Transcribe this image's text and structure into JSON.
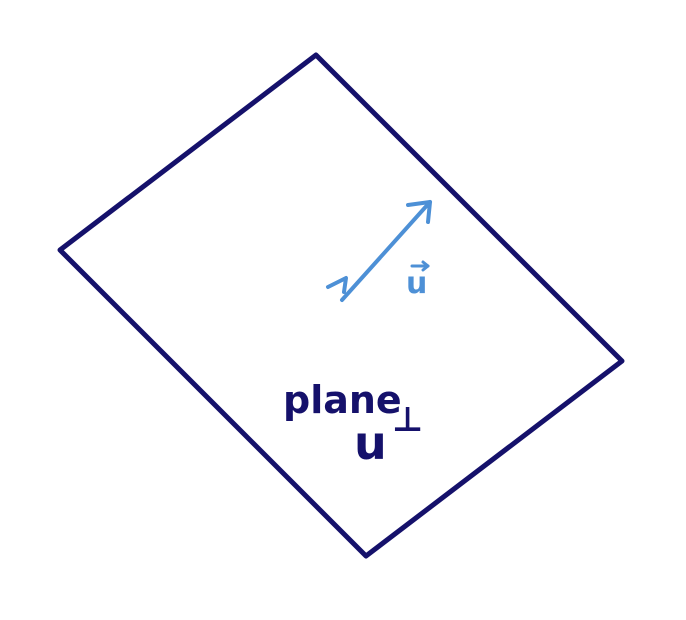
{
  "diagram": {
    "plane": {
      "label": "plane",
      "color": "#15116b"
    },
    "vector": {
      "label": "u",
      "color": "#4d90d6"
    },
    "perp_label": {
      "base": "u",
      "superscript": "⊥",
      "color": "#15116b"
    }
  }
}
